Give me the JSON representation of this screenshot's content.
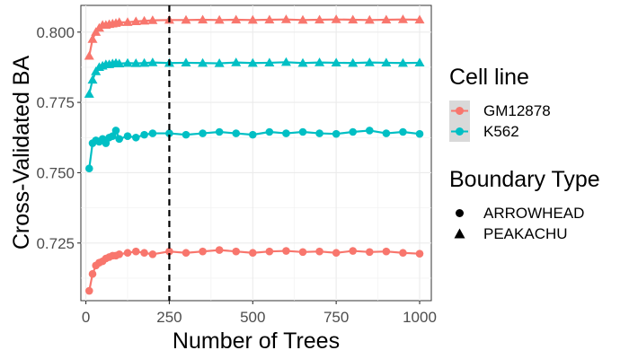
{
  "chart_data": {
    "type": "line",
    "xlabel": "Number of Trees",
    "ylabel": "Cross-Validated BA",
    "xlim": [
      -15,
      1035
    ],
    "ylim": [
      0.7045,
      0.8095
    ],
    "xticks": [
      0,
      250,
      500,
      750,
      1000
    ],
    "yticks": [
      0.725,
      0.75,
      0.775,
      0.8
    ],
    "ytick_labels": [
      "0.725",
      "0.750",
      "0.775",
      "0.800"
    ],
    "grid": true,
    "vline": {
      "x": 250,
      "style": "dashed"
    },
    "legend_placement": "right",
    "colors": {
      "GM12878": "#F8766D",
      "K562": "#00BFC4"
    },
    "legend": {
      "color_title": "Cell line",
      "color_items": [
        "GM12878",
        "K562"
      ],
      "shape_title": "Boundary Type",
      "shape_items": [
        {
          "label": "ARROWHEAD",
          "shape": "circle"
        },
        {
          "label": "PEAKACHU",
          "shape": "triangle"
        }
      ]
    },
    "x": [
      10,
      20,
      30,
      40,
      50,
      60,
      70,
      80,
      90,
      100,
      125,
      150,
      175,
      200,
      250,
      300,
      350,
      400,
      450,
      500,
      550,
      600,
      650,
      700,
      750,
      800,
      850,
      900,
      950,
      1000
    ],
    "series": [
      {
        "cell_line": "GM12878",
        "boundary": "PEAKACHU",
        "shape": "triangle",
        "values": [
          0.7915,
          0.7975,
          0.8,
          0.8015,
          0.8025,
          0.8025,
          0.8028,
          0.803,
          0.8032,
          0.8035,
          0.8035,
          0.8038,
          0.804,
          0.8042,
          0.8043,
          0.8043,
          0.8044,
          0.8043,
          0.8044,
          0.8043,
          0.8044,
          0.8045,
          0.8043,
          0.8044,
          0.8045,
          0.8044,
          0.8043,
          0.8044,
          0.8045,
          0.8044
        ]
      },
      {
        "cell_line": "K562",
        "boundary": "PEAKACHU",
        "shape": "triangle",
        "values": [
          0.778,
          0.783,
          0.786,
          0.7875,
          0.788,
          0.7885,
          0.7885,
          0.7888,
          0.789,
          0.7888,
          0.789,
          0.7889,
          0.789,
          0.7892,
          0.789,
          0.7891,
          0.789,
          0.7889,
          0.7892,
          0.789,
          0.7891,
          0.7893,
          0.789,
          0.7892,
          0.7891,
          0.789,
          0.7892,
          0.7891,
          0.789,
          0.7891
        ]
      },
      {
        "cell_line": "K562",
        "boundary": "ARROWHEAD",
        "shape": "circle",
        "values": [
          0.7515,
          0.7605,
          0.7615,
          0.761,
          0.762,
          0.7605,
          0.7625,
          0.763,
          0.765,
          0.762,
          0.763,
          0.7625,
          0.7635,
          0.764,
          0.764,
          0.7635,
          0.764,
          0.7645,
          0.764,
          0.7635,
          0.7645,
          0.764,
          0.7645,
          0.764,
          0.7638,
          0.7645,
          0.765,
          0.764,
          0.7645,
          0.7638
        ]
      },
      {
        "cell_line": "GM12878",
        "boundary": "ARROWHEAD",
        "shape": "circle",
        "values": [
          0.708,
          0.714,
          0.717,
          0.718,
          0.7185,
          0.7195,
          0.72,
          0.7205,
          0.7205,
          0.721,
          0.7215,
          0.722,
          0.7215,
          0.721,
          0.722,
          0.7215,
          0.722,
          0.7225,
          0.722,
          0.7215,
          0.722,
          0.7222,
          0.7218,
          0.722,
          0.7215,
          0.7222,
          0.7218,
          0.722,
          0.7215,
          0.7212
        ]
      }
    ]
  }
}
